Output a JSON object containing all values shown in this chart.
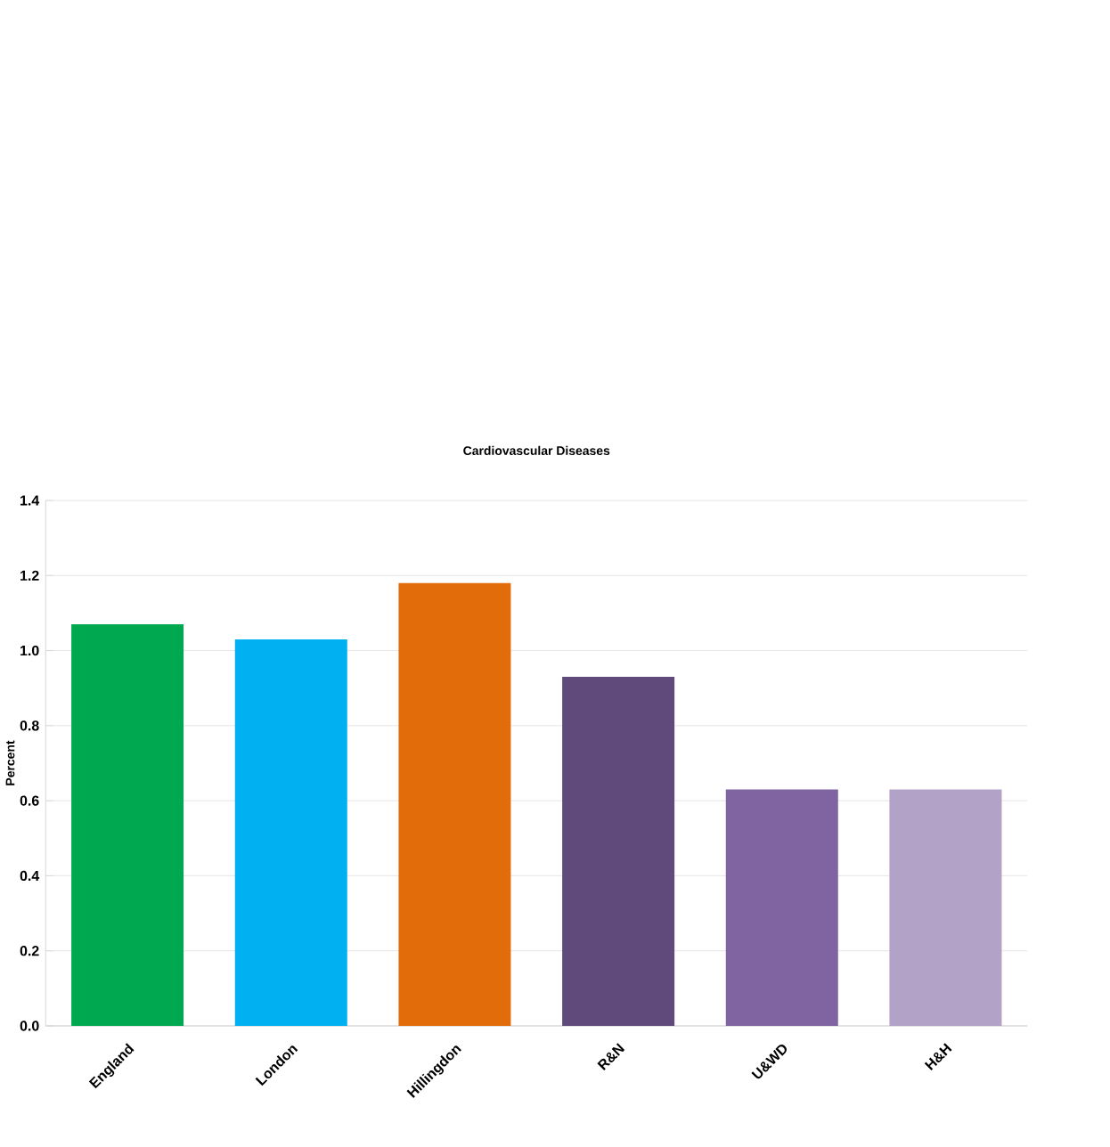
{
  "chart_data": {
    "type": "bar",
    "title": "Cardiovascular Diseases",
    "ylabel": "Percent",
    "categories": [
      "England",
      "London",
      "Hillingdon",
      "R&N",
      "U&WD",
      "H&H"
    ],
    "values": [
      1.07,
      1.03,
      1.18,
      0.93,
      0.63,
      0.63
    ],
    "colors": [
      "#00a94f",
      "#00b0f0",
      "#e36c0a",
      "#604a7b",
      "#8064a2",
      "#b2a2c7"
    ],
    "ylim": [
      0,
      1.4
    ],
    "yticks": [
      {
        "value": 0,
        "label": "0.0"
      },
      {
        "value": 0.2,
        "label": "0.2"
      },
      {
        "value": 0.4,
        "label": "0.4"
      },
      {
        "value": 0.6,
        "label": "0.6"
      },
      {
        "value": 0.8,
        "label": "0.8"
      },
      {
        "value": 1.0,
        "label": "1.0"
      },
      {
        "value": 1.2,
        "label": "1.2"
      },
      {
        "value": 1.4,
        "label": "1.4"
      }
    ],
    "grid": "y"
  }
}
